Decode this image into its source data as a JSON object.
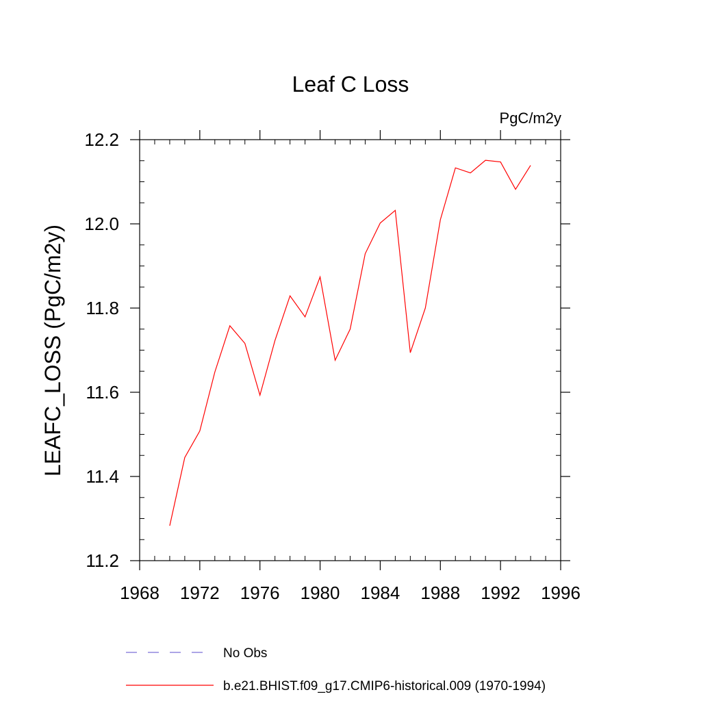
{
  "chart_data": {
    "type": "line",
    "title": "Leaf C Loss",
    "units_label": "PgC/m2y",
    "ylabel": "LEAFC_LOSS  (PgC/m2y)",
    "xlabel": "",
    "xlim": [
      1968,
      1996
    ],
    "ylim": [
      11.2,
      12.2
    ],
    "x_ticks": [
      1968,
      1972,
      1976,
      1980,
      1984,
      1988,
      1992,
      1996
    ],
    "y_ticks": [
      11.2,
      11.4,
      11.6,
      11.8,
      12.0,
      12.2
    ],
    "x_tick_labels": [
      "1968",
      "1972",
      "1976",
      "1980",
      "1984",
      "1988",
      "1992",
      "1996"
    ],
    "y_tick_labels": [
      "11.2",
      "11.4",
      "11.6",
      "11.8",
      "12.0",
      "12.2"
    ],
    "grid": false,
    "legend_position": "bottom",
    "series": [
      {
        "name": "No Obs",
        "color": "#7b6fd6",
        "style": "dashed",
        "x": [],
        "y": []
      },
      {
        "name": "b.e21.BHIST.f09_g17.CMIP6-historical.009 (1970-1994)",
        "color": "#ff0000",
        "style": "solid",
        "x": [
          1970,
          1971,
          1972,
          1973,
          1974,
          1975,
          1976,
          1977,
          1978,
          1979,
          1980,
          1981,
          1982,
          1983,
          1984,
          1985,
          1986,
          1987,
          1988,
          1989,
          1990,
          1991,
          1992,
          1993,
          1994
        ],
        "y": [
          11.283,
          11.445,
          11.508,
          11.648,
          11.758,
          11.716,
          11.593,
          11.723,
          11.829,
          11.779,
          11.874,
          11.676,
          11.75,
          11.929,
          12.002,
          12.032,
          11.694,
          11.8,
          12.01,
          12.133,
          12.121,
          12.151,
          12.147,
          12.082,
          12.139
        ]
      }
    ]
  }
}
